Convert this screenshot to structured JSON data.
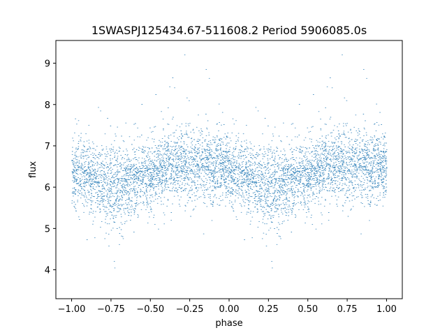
{
  "chart_data": {
    "type": "scatter",
    "title": "1SWASPJ125434.67-511608.2 Period 5906085.0s",
    "xlabel": "phase",
    "ylabel": "flux",
    "xlim": [
      -1.1,
      1.1
    ],
    "ylim": [
      3.3,
      9.55
    ],
    "xticks": [
      -1.0,
      -0.75,
      -0.5,
      -0.25,
      0.0,
      0.25,
      0.5,
      0.75,
      1.0
    ],
    "xtick_labels": [
      "−1.00",
      "−0.75",
      "−0.50",
      "−0.25",
      "0.00",
      "0.25",
      "0.50",
      "0.75",
      "1.00"
    ],
    "yticks": [
      4,
      5,
      6,
      7,
      8,
      9
    ],
    "ytick_labels": [
      "4",
      "5",
      "6",
      "7",
      "8",
      "9"
    ],
    "grid": false,
    "point_color": "#1f77b4",
    "series": [
      {
        "phase_profile": [
          {
            "x": 0.0,
            "y": 6.4,
            "spread": 0.4
          },
          {
            "x": 0.05,
            "y": 6.3,
            "spread": 0.4
          },
          {
            "x": 0.1,
            "y": 6.25,
            "spread": 0.42
          },
          {
            "x": 0.15,
            "y": 6.2,
            "spread": 0.42
          },
          {
            "x": 0.2,
            "y": 6.1,
            "spread": 0.45
          },
          {
            "x": 0.25,
            "y": 6.0,
            "spread": 0.55
          },
          {
            "x": 0.3,
            "y": 5.95,
            "spread": 0.55
          },
          {
            "x": 0.35,
            "y": 6.1,
            "spread": 0.45
          },
          {
            "x": 0.4,
            "y": 6.2,
            "spread": 0.4
          },
          {
            "x": 0.45,
            "y": 6.25,
            "spread": 0.4
          },
          {
            "x": 0.5,
            "y": 6.3,
            "spread": 0.42
          },
          {
            "x": 0.55,
            "y": 6.35,
            "spread": 0.4
          },
          {
            "x": 0.6,
            "y": 6.5,
            "spread": 0.4
          },
          {
            "x": 0.65,
            "y": 6.55,
            "spread": 0.4
          },
          {
            "x": 0.7,
            "y": 6.5,
            "spread": 0.42
          },
          {
            "x": 0.75,
            "y": 6.6,
            "spread": 0.42
          },
          {
            "x": 0.8,
            "y": 6.6,
            "spread": 0.45
          },
          {
            "x": 0.85,
            "y": 6.55,
            "spread": 0.45
          },
          {
            "x": 0.9,
            "y": 6.5,
            "spread": 0.42
          },
          {
            "x": 0.95,
            "y": 6.5,
            "spread": 0.4
          },
          {
            "x": 1.0,
            "y": 6.4,
            "spread": 0.4
          }
        ]
      }
    ]
  }
}
